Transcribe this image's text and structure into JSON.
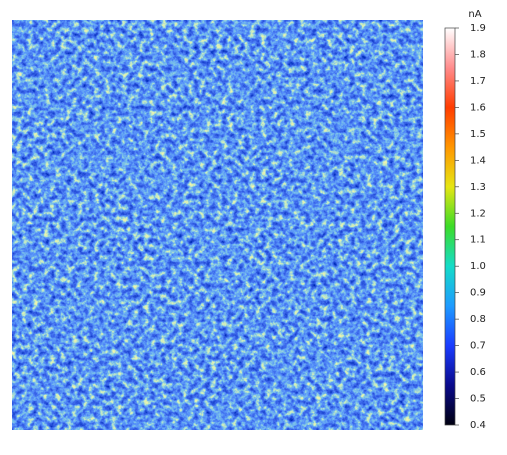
{
  "chart_data": {
    "type": "heatmap",
    "colorbar_label": "nA",
    "clim": [
      0.4,
      1.9
    ],
    "colormap": [
      "#000010",
      "#0a0a8c",
      "#1a3cff",
      "#1e9bff",
      "#14dcc8",
      "#3cdc28",
      "#e6e614",
      "#ff9600",
      "#ff3c00",
      "#ff8c8c",
      "#ffffff"
    ],
    "cticks": [
      0.4,
      0.5,
      0.6,
      0.7,
      0.8,
      0.9,
      {
        "value": 1,
        "label": "1.0"
      },
      1.1,
      1.2,
      1.3,
      1.4,
      1.5,
      1.6,
      1.7,
      1.8,
      1.9
    ]
  }
}
